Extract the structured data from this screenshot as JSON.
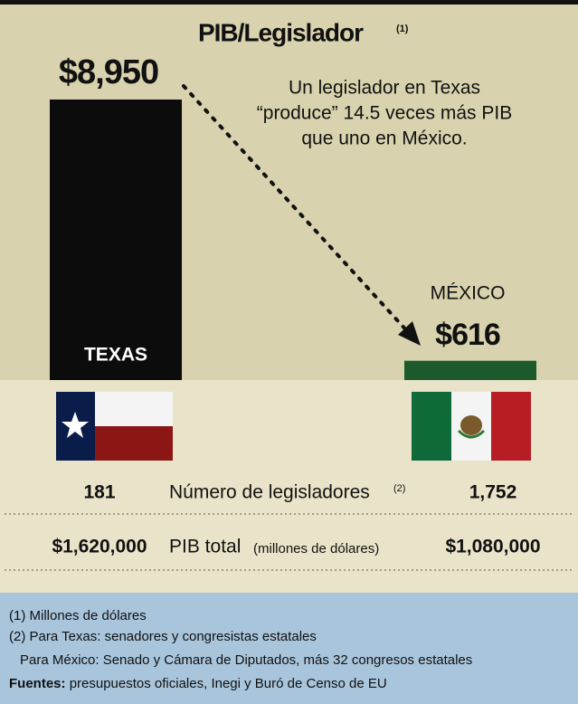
{
  "chart_data": {
    "type": "bar",
    "title": "PIB/Legislador",
    "title_note": "(1)",
    "annotation": [
      "Un legislador en Texas",
      "“produce” 14.5 veces más PIB",
      "que uno en México."
    ],
    "categories": [
      "TEXAS",
      "MÉXICO"
    ],
    "values": [
      8950,
      616
    ],
    "value_labels": [
      "$8,950",
      "$616"
    ],
    "colors": [
      "#0c0c0c",
      "#1d5a2b"
    ]
  },
  "table": {
    "rows": [
      {
        "left": "181",
        "label": "Número de legisladores",
        "note": "(2)",
        "right": "1,752"
      },
      {
        "left": "$1,620,000",
        "label": "PIB total",
        "note": "(millones de dólares)",
        "right": "$1,080,000"
      }
    ]
  },
  "footer": {
    "notes": [
      "(1) Millones de dólares",
      "(2) Para Texas: senadores y congresistas estatales",
      "Para México: Senado y Cámara de Diputados, más 32 congresos estatales"
    ],
    "sources_label": "Fuentes:",
    "sources": "presupuestos oficiales, Inegi y Buró de Censo de EU"
  }
}
